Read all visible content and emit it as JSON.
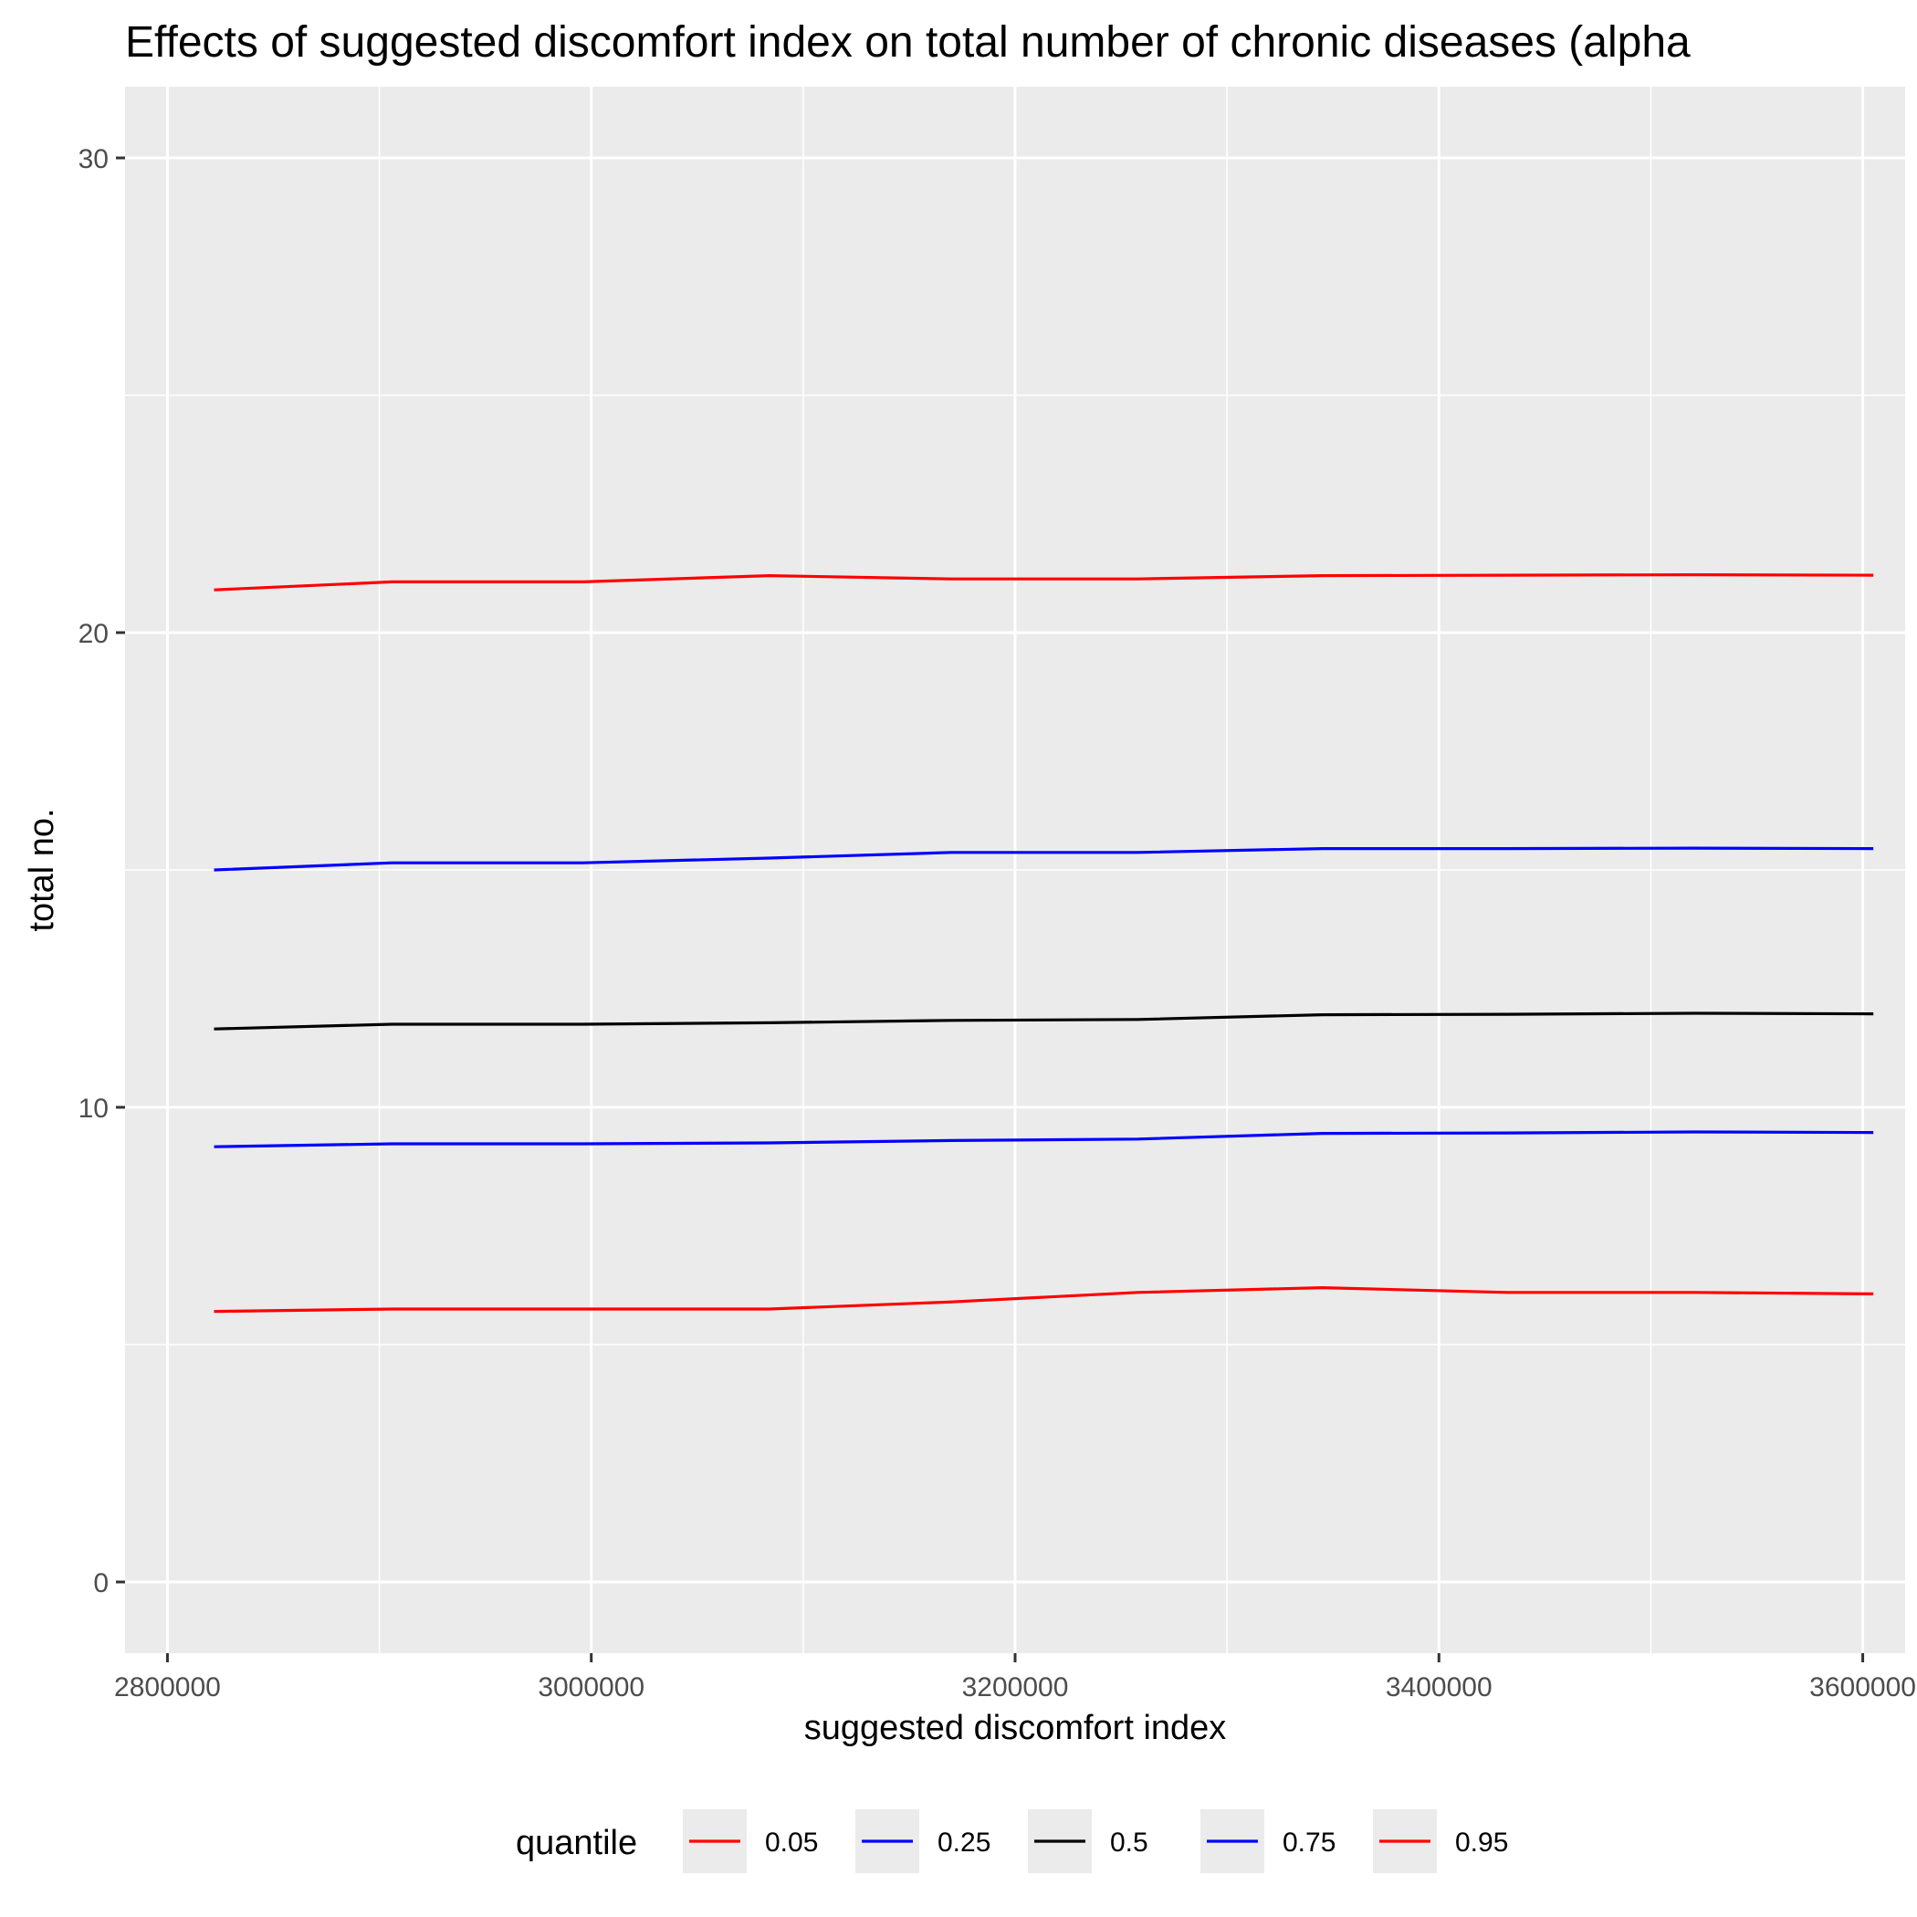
{
  "chart_data": {
    "type": "line",
    "title": "Effects of suggested discomfort index on total number of chronic diseases (alpha",
    "xlabel": "suggested discomfort index",
    "ylabel": "total no.",
    "xlim": [
      2780000,
      3620000
    ],
    "ylim": [
      -1.5,
      31.5
    ],
    "x_ticks": [
      2800000,
      3000000,
      3200000,
      3400000,
      3600000
    ],
    "x_tick_labels": [
      "2800000",
      "3000000",
      "3200000",
      "3400000",
      "3600000"
    ],
    "y_ticks": [
      0,
      10,
      20,
      30
    ],
    "y_tick_labels": [
      "0",
      "10",
      "20",
      "30"
    ],
    "grid": true,
    "legend_position": "bottom",
    "legend_title": "quantile",
    "x": [
      2822000,
      2906000,
      2996000,
      3084000,
      3170000,
      3258000,
      3345000,
      3432000,
      3520000,
      3605000
    ],
    "series": [
      {
        "name": "0.05",
        "color": "#ff0000",
        "values": [
          5.7,
          5.75,
          5.75,
          5.75,
          5.9,
          6.1,
          6.2,
          6.1,
          6.1,
          6.07
        ]
      },
      {
        "name": "0.25",
        "color": "#0000ff",
        "values": [
          9.17,
          9.23,
          9.23,
          9.25,
          9.3,
          9.33,
          9.45,
          9.46,
          9.48,
          9.47
        ]
      },
      {
        "name": "0.5",
        "color": "#000000",
        "values": [
          11.65,
          11.75,
          11.75,
          11.78,
          11.83,
          11.85,
          11.95,
          11.96,
          11.98,
          11.97
        ]
      },
      {
        "name": "0.75",
        "color": "#0000ff",
        "values": [
          15.0,
          15.15,
          15.15,
          15.25,
          15.37,
          15.37,
          15.45,
          15.45,
          15.46,
          15.45
        ]
      },
      {
        "name": "0.95",
        "color": "#ff0000",
        "values": [
          20.9,
          21.07,
          21.07,
          21.2,
          21.13,
          21.13,
          21.2,
          21.21,
          21.22,
          21.21
        ]
      }
    ]
  }
}
